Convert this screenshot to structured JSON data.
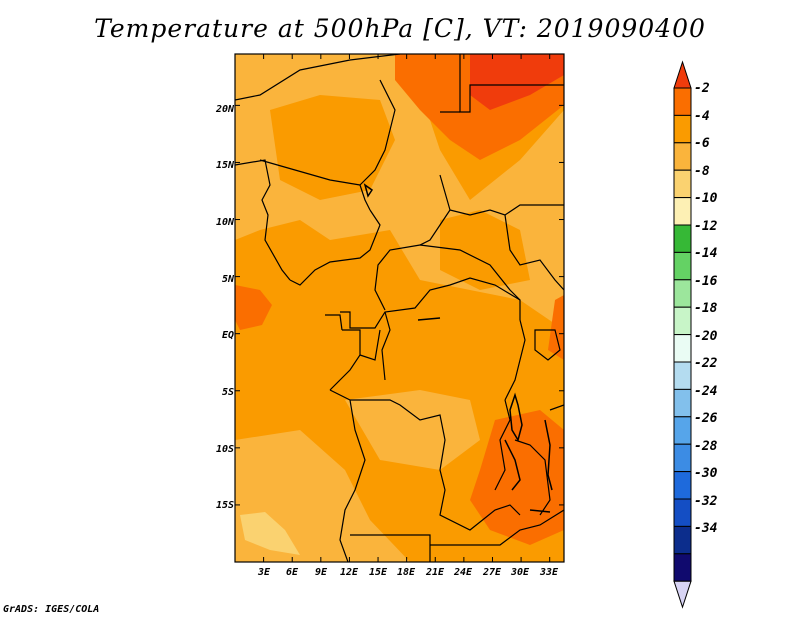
{
  "title": "Temperature at 500hPa [C], VT: 2019090400",
  "footer": "GrADS: IGES/COLA",
  "map": {
    "lat_ticks": [
      "20N",
      "15N",
      "10N",
      "5N",
      "EQ",
      "5S",
      "10S",
      "15S"
    ],
    "lon_ticks": [
      "3E",
      "6E",
      "9E",
      "12E",
      "15E",
      "18E",
      "21E",
      "24E",
      "27E",
      "30E",
      "33E"
    ],
    "lat_values": [
      20,
      15,
      10,
      5,
      0,
      -5,
      -10,
      -15
    ],
    "lon_values": [
      3,
      6,
      9,
      12,
      15,
      18,
      21,
      24,
      27,
      30,
      33
    ],
    "lat_range": [
      -20,
      24.5
    ],
    "lon_range": [
      0,
      34.5
    ]
  },
  "colorbar": {
    "labels": [
      "-2",
      "-4",
      "-6",
      "-8",
      "-10",
      "-12",
      "-14",
      "-16",
      "-18",
      "-20",
      "-22",
      "-24",
      "-26",
      "-28",
      "-30",
      "-32",
      "-34"
    ],
    "colors": [
      "#f03c0c",
      "#fa6e00",
      "#fa9b00",
      "#fab43c",
      "#fad270",
      "#fdf0b4",
      "#36b836",
      "#64d264",
      "#9ce69c",
      "#c8f5c8",
      "#eafcf4",
      "#b4dcf0",
      "#82c0ec",
      "#56a5ea",
      "#3c8ce4",
      "#1e6adc",
      "#144ec4",
      "#0c2d8c",
      "#100a6e",
      "#d8d4f4"
    ]
  }
}
